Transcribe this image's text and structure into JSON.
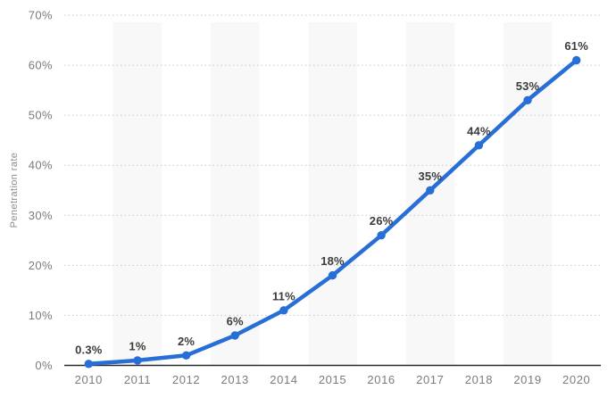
{
  "chart_data": {
    "type": "line",
    "title": "",
    "xlabel": "",
    "ylabel": "Penetration rate",
    "categories": [
      "2010",
      "2011",
      "2012",
      "2013",
      "2014",
      "2015",
      "2016",
      "2017",
      "2018",
      "2019",
      "2020"
    ],
    "series": [
      {
        "name": "Penetration rate",
        "values": [
          0.3,
          1,
          2,
          6,
          11,
          18,
          26,
          35,
          44,
          53,
          61
        ],
        "point_labels": [
          "0.3%",
          "1%",
          "2%",
          "6%",
          "11%",
          "18%",
          "26%",
          "35%",
          "44%",
          "53%",
          "61%"
        ]
      }
    ],
    "ylim": [
      0,
      70
    ],
    "yticks": [
      {
        "value": 0,
        "label": "0%"
      },
      {
        "value": 10,
        "label": "10%"
      },
      {
        "value": 20,
        "label": "20%"
      },
      {
        "value": 30,
        "label": "30%"
      },
      {
        "value": 40,
        "label": "40%"
      },
      {
        "value": 50,
        "label": "50%"
      },
      {
        "value": 60,
        "label": "60%"
      },
      {
        "value": 70,
        "label": "70%"
      }
    ],
    "grid": "horizontal-dotted",
    "legend": "none",
    "plot_bands": "alternating-category-columns",
    "colors": {
      "line": "#286ed7",
      "marker": "#286ed7",
      "gridline": "#c6c6c6",
      "plot_band": "#f8f8f8",
      "axis_line": "#2b2b2b",
      "tick_label": "#7b7b7b",
      "data_label": "#3c3c3c",
      "axis_title": "#8c8c8c",
      "background": "#ffffff"
    }
  }
}
